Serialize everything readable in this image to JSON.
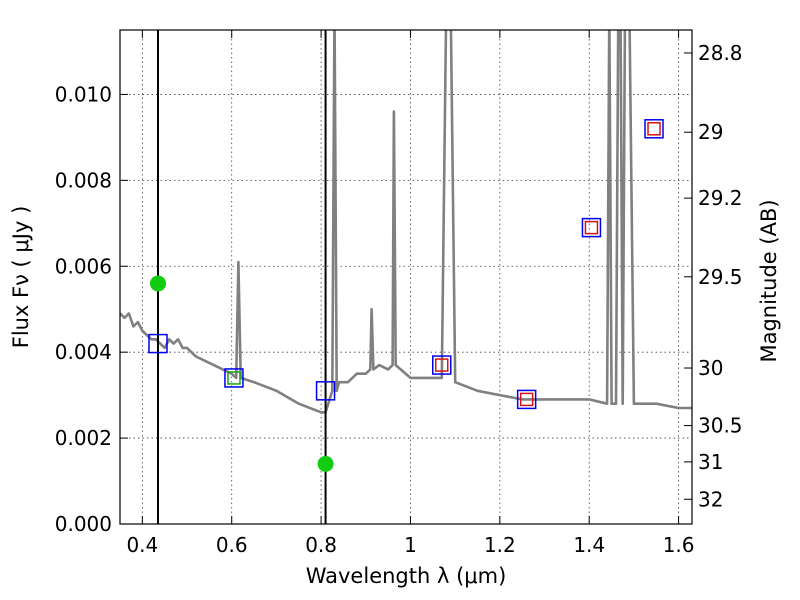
{
  "chart_data": {
    "type": "line",
    "xlabel": "Wavelength  λ (μm)",
    "ylabel": "Flux  Fν  ( μJy )",
    "ylabel_right": "Magnitude (AB)",
    "xlim": [
      0.35,
      1.63
    ],
    "ylim": [
      0.0,
      0.0115
    ],
    "grid": true,
    "x_ticks": [
      {
        "value": 0.4,
        "label": "0.4"
      },
      {
        "value": 0.6,
        "label": "0.6"
      },
      {
        "value": 0.8,
        "label": "0.8"
      },
      {
        "value": 1.0,
        "label": "1"
      },
      {
        "value": 1.2,
        "label": "1.2"
      },
      {
        "value": 1.4,
        "label": "1.4"
      },
      {
        "value": 1.6,
        "label": "1.6"
      }
    ],
    "y_ticks": [
      {
        "value": 0.0,
        "label": "0.000"
      },
      {
        "value": 0.002,
        "label": "0.002"
      },
      {
        "value": 0.004,
        "label": "0.004"
      },
      {
        "value": 0.006,
        "label": "0.006"
      },
      {
        "value": 0.008,
        "label": "0.008"
      },
      {
        "value": 0.01,
        "label": "0.010"
      }
    ],
    "y_right_ticks": [
      {
        "value": 28.8,
        "label": "28.8"
      },
      {
        "value": 29.0,
        "label": "29"
      },
      {
        "value": 29.2,
        "label": "29.2"
      },
      {
        "value": 29.5,
        "label": "29.5"
      },
      {
        "value": 30.0,
        "label": "30"
      },
      {
        "value": 30.5,
        "label": "30.5"
      },
      {
        "value": 31.0,
        "label": "31"
      },
      {
        "value": 32.0,
        "label": "32"
      }
    ],
    "vlines": [
      0.435,
      0.81
    ],
    "model_sed": {
      "color": "#808080",
      "points": [
        [
          0.35,
          0.0049
        ],
        [
          0.36,
          0.0048
        ],
        [
          0.37,
          0.0049
        ],
        [
          0.38,
          0.0046
        ],
        [
          0.39,
          0.0047
        ],
        [
          0.4,
          0.0045
        ],
        [
          0.41,
          0.0044
        ],
        [
          0.42,
          0.0043
        ],
        [
          0.43,
          0.0043
        ],
        [
          0.44,
          0.0042
        ],
        [
          0.45,
          0.0041
        ],
        [
          0.46,
          0.0043
        ],
        [
          0.47,
          0.0042
        ],
        [
          0.48,
          0.0043
        ],
        [
          0.49,
          0.0041
        ],
        [
          0.5,
          0.0041
        ],
        [
          0.52,
          0.0039
        ],
        [
          0.54,
          0.0038
        ],
        [
          0.56,
          0.0037
        ],
        [
          0.58,
          0.0036
        ],
        [
          0.6,
          0.0035
        ],
        [
          0.61,
          0.0034
        ],
        [
          0.615,
          0.0061
        ],
        [
          0.62,
          0.0034
        ],
        [
          0.65,
          0.0033
        ],
        [
          0.7,
          0.0031
        ],
        [
          0.75,
          0.0028
        ],
        [
          0.8,
          0.0026
        ],
        [
          0.81,
          0.0026
        ],
        [
          0.825,
          0.0031
        ],
        [
          0.83,
          0.012
        ],
        [
          0.835,
          0.0031
        ],
        [
          0.84,
          0.0033
        ],
        [
          0.86,
          0.0033
        ],
        [
          0.88,
          0.0035
        ],
        [
          0.9,
          0.0035
        ],
        [
          0.91,
          0.0036
        ],
        [
          0.913,
          0.005
        ],
        [
          0.917,
          0.0036
        ],
        [
          0.93,
          0.0037
        ],
        [
          0.95,
          0.0036
        ],
        [
          0.96,
          0.0037
        ],
        [
          0.963,
          0.0096
        ],
        [
          0.967,
          0.0037
        ],
        [
          1.0,
          0.0034
        ],
        [
          1.04,
          0.0034
        ],
        [
          1.07,
          0.0034
        ],
        [
          1.08,
          0.012
        ],
        [
          1.09,
          0.012
        ],
        [
          1.1,
          0.0033
        ],
        [
          1.15,
          0.0031
        ],
        [
          1.2,
          0.003
        ],
        [
          1.25,
          0.0029
        ],
        [
          1.3,
          0.0029
        ],
        [
          1.35,
          0.0029
        ],
        [
          1.4,
          0.0029
        ],
        [
          1.44,
          0.0028
        ],
        [
          1.445,
          0.012
        ],
        [
          1.45,
          0.0028
        ],
        [
          1.46,
          0.0028
        ],
        [
          1.465,
          0.012
        ],
        [
          1.47,
          0.012
        ],
        [
          1.475,
          0.0028
        ],
        [
          1.48,
          0.012
        ],
        [
          1.49,
          0.012
        ],
        [
          1.5,
          0.0028
        ],
        [
          1.55,
          0.0028
        ],
        [
          1.6,
          0.0027
        ],
        [
          1.63,
          0.0027
        ]
      ]
    },
    "observed_points": {
      "color": "#11cc11",
      "points": [
        [
          0.435,
          0.0056
        ],
        [
          0.81,
          0.0014
        ]
      ]
    },
    "model_squares_blue": {
      "color": "#0000ee",
      "points": [
        [
          0.435,
          0.0042
        ],
        [
          0.605,
          0.0034
        ],
        [
          0.81,
          0.0031
        ],
        [
          1.07,
          0.0037
        ],
        [
          1.26,
          0.0029
        ],
        [
          1.405,
          0.0069
        ],
        [
          1.545,
          0.0092
        ]
      ]
    },
    "model_squares_red": {
      "color": "#dd1111",
      "points": [
        [
          1.07,
          0.0037
        ],
        [
          1.26,
          0.0029
        ],
        [
          1.405,
          0.0069
        ],
        [
          1.545,
          0.0092
        ]
      ]
    },
    "model_squares_green": {
      "color": "#11aa11",
      "points": [
        [
          0.605,
          0.0034
        ]
      ]
    }
  }
}
